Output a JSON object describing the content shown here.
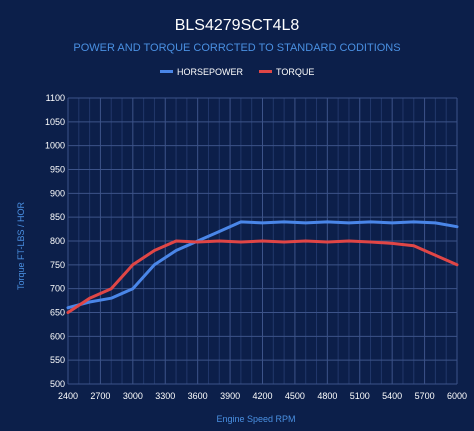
{
  "chart_data": {
    "type": "line",
    "title": "BLS4279SCT4L8",
    "subtitle": "POWER AND TORQUE CORRCTED TO STANDARD CODITIONS",
    "xlabel": "Engine Speed RPM",
    "ylabel": "Torque FT-LBS / HOR",
    "xlim": [
      2400,
      6000
    ],
    "ylim": [
      500,
      1100
    ],
    "x_ticks": [
      "2400",
      "2700",
      "3000",
      "3300",
      "3600",
      "3900",
      "4200",
      "4500",
      "4800",
      "5100",
      "5400",
      "5700",
      "6000"
    ],
    "y_ticks": [
      "500",
      "550",
      "600",
      "650",
      "700",
      "750",
      "800",
      "850",
      "900",
      "950",
      "1000",
      "1050",
      "1100"
    ],
    "grid": true,
    "legend_position": "top",
    "series": [
      {
        "name": "HORSEPOWER",
        "color": "#4a86e8",
        "x": [
          2400,
          2600,
          2800,
          3000,
          3200,
          3400,
          3600,
          3800,
          4000,
          4200,
          4400,
          4600,
          4800,
          5000,
          5200,
          5400,
          5600,
          5800,
          6000
        ],
        "y": [
          660,
          672,
          680,
          700,
          750,
          780,
          800,
          820,
          840,
          838,
          840,
          838,
          840,
          838,
          840,
          838,
          840,
          838,
          830
        ]
      },
      {
        "name": "TORQUE",
        "color": "#e04646",
        "x": [
          2400,
          2600,
          2800,
          3000,
          3200,
          3400,
          3600,
          3800,
          4000,
          4200,
          4400,
          4600,
          4800,
          5000,
          5200,
          5400,
          5600,
          5800,
          6000
        ],
        "y": [
          650,
          680,
          700,
          750,
          780,
          800,
          798,
          800,
          798,
          800,
          798,
          800,
          798,
          800,
          798,
          795,
          790,
          770,
          750
        ]
      }
    ]
  }
}
